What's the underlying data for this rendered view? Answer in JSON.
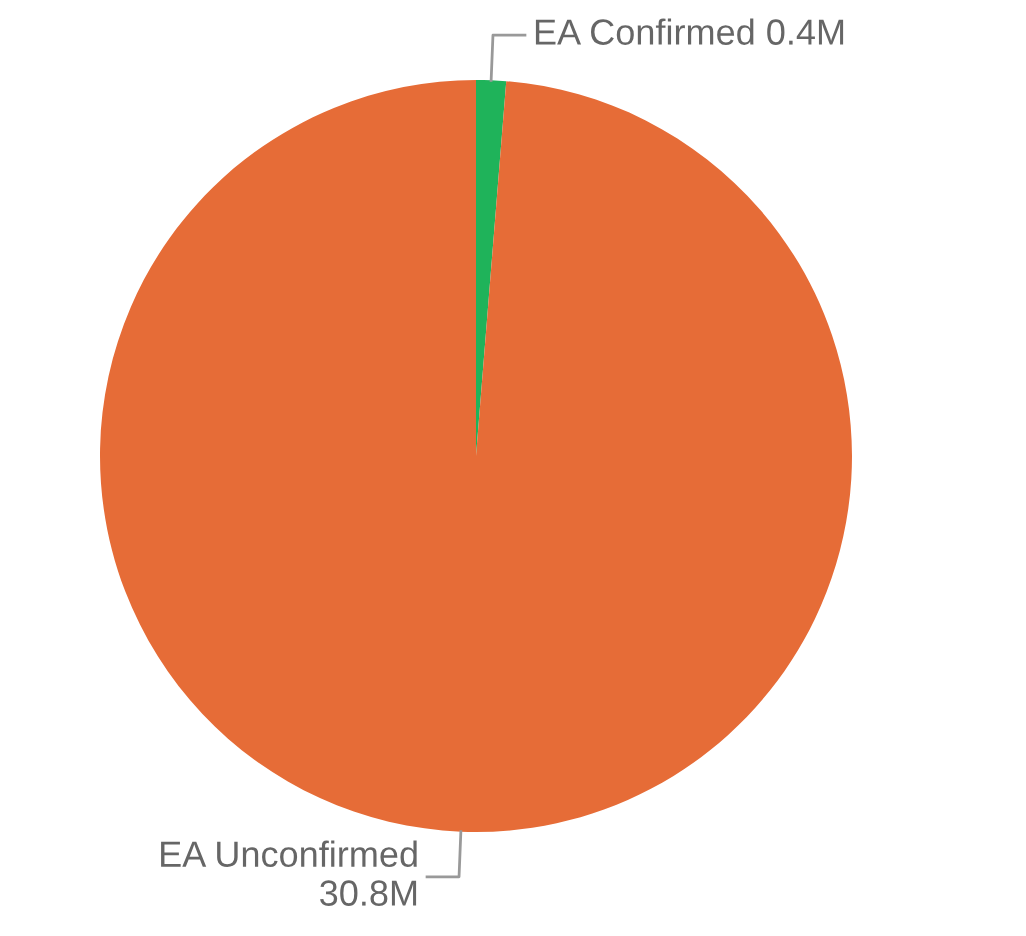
{
  "chart_data": {
    "type": "pie",
    "categories": [
      "EA Confirmed",
      "EA Unconfirmed"
    ],
    "values": [
      0.4,
      30.8
    ],
    "value_labels": [
      "0.4M",
      "30.8M"
    ],
    "colors": [
      "#1fb35a",
      "#e66c37"
    ],
    "legend": false
  }
}
